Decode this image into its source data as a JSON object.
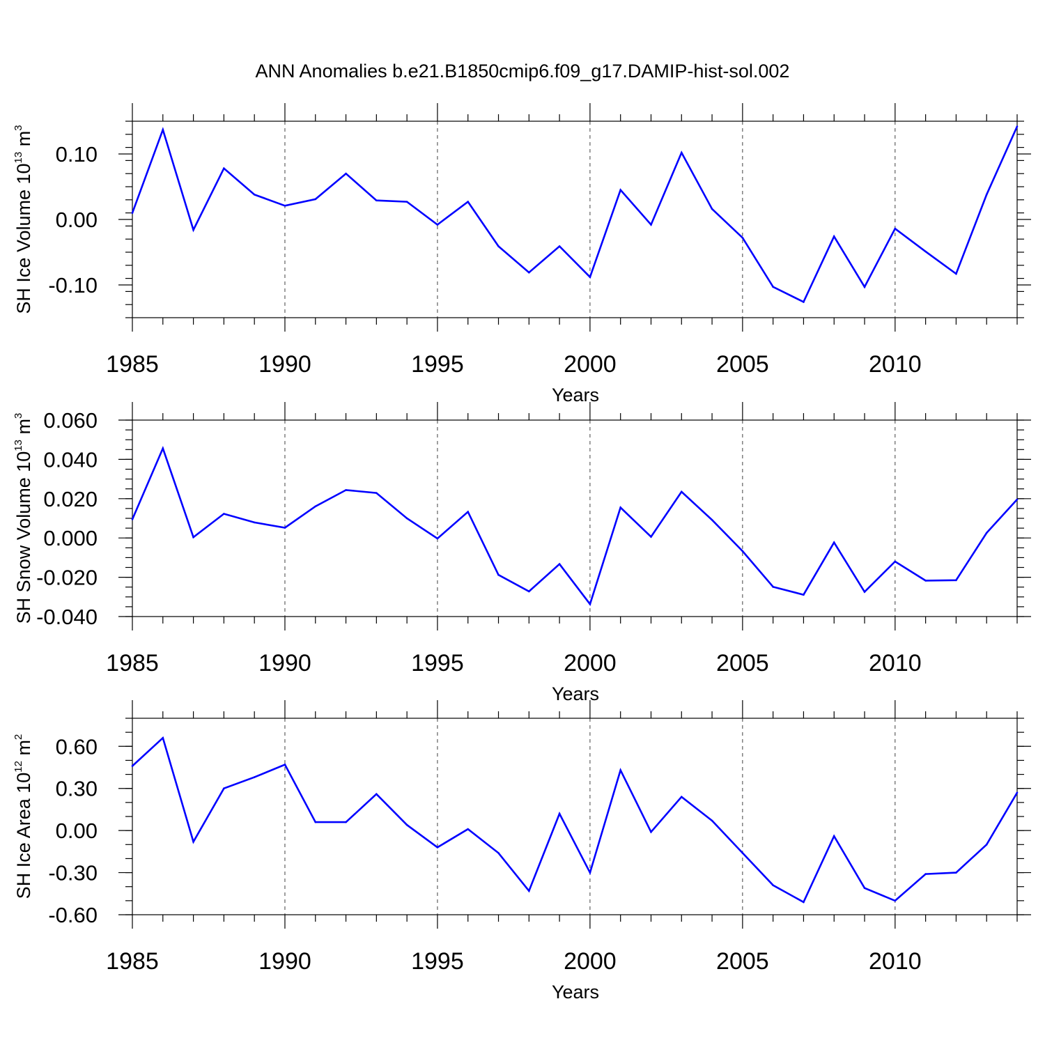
{
  "title": "ANN Anomalies b.e21.B1850cmip6.f09_g17.DAMIP-hist-sol.002",
  "colors": {
    "series": "#0000ff",
    "axis": "#000000",
    "background": "#ffffff"
  },
  "chart_data": [
    {
      "type": "line",
      "id": "ice-volume",
      "ylabel": {
        "prefix": "SH Ice Volume 10",
        "exp": "13",
        "unit": " m",
        "unit_exp": "3"
      },
      "xlabel": "Years",
      "xlim": [
        1985,
        2014
      ],
      "ylim": [
        -0.15,
        0.15
      ],
      "xticks": [
        1985,
        1990,
        1995,
        2000,
        2005,
        2010
      ],
      "xtick_labels": [
        "1985",
        "1990",
        "1995",
        "2000",
        "2005",
        "2010"
      ],
      "yticks": [
        -0.1,
        0.0,
        0.1
      ],
      "ytick_labels": [
        "-0.10",
        "0.00",
        "0.10"
      ],
      "yminor_step": 0.02,
      "grid": "vertical-dashed",
      "x": [
        1985,
        1986,
        1987,
        1988,
        1989,
        1990,
        1991,
        1992,
        1993,
        1994,
        1995,
        1996,
        1997,
        1998,
        1999,
        2000,
        2001,
        2002,
        2003,
        2004,
        2005,
        2006,
        2007,
        2008,
        2009,
        2010,
        2011,
        2012,
        2013,
        2014
      ],
      "values": [
        0.01,
        0.137,
        -0.016,
        0.078,
        0.038,
        0.021,
        0.031,
        0.07,
        0.029,
        0.027,
        -0.008,
        0.027,
        -0.041,
        -0.081,
        -0.041,
        -0.088,
        0.045,
        -0.008,
        0.102,
        0.016,
        -0.028,
        -0.103,
        -0.126,
        -0.026,
        -0.103,
        -0.014,
        -0.049,
        -0.083,
        0.038,
        0.142
      ]
    },
    {
      "type": "line",
      "id": "snow-volume",
      "ylabel": {
        "prefix": "SH Snow Volume 10",
        "exp": "13",
        "unit": " m",
        "unit_exp": "3"
      },
      "xlabel": "Years",
      "xlim": [
        1985,
        2014
      ],
      "ylim": [
        -0.04,
        0.06
      ],
      "xticks": [
        1985,
        1990,
        1995,
        2000,
        2005,
        2010
      ],
      "xtick_labels": [
        "1985",
        "1990",
        "1995",
        "2000",
        "2005",
        "2010"
      ],
      "yticks": [
        -0.04,
        -0.02,
        0.0,
        0.02,
        0.04,
        0.06
      ],
      "ytick_labels": [
        "-0.040",
        "-0.020",
        "0.000",
        "0.020",
        "0.040",
        "0.060"
      ],
      "yminor_step": 0.005,
      "grid": "vertical-dashed",
      "x": [
        1985,
        1986,
        1987,
        1988,
        1989,
        1990,
        1991,
        1992,
        1993,
        1994,
        1995,
        1996,
        1997,
        1998,
        1999,
        2000,
        2001,
        2002,
        2003,
        2004,
        2005,
        2006,
        2007,
        2008,
        2009,
        2010,
        2011,
        2012,
        2013,
        2014
      ],
      "values": [
        0.0095,
        0.0456,
        0.0004,
        0.0123,
        0.0079,
        0.0052,
        0.0161,
        0.0244,
        0.0229,
        0.01,
        -0.0003,
        0.0133,
        -0.0188,
        -0.0272,
        -0.0133,
        -0.0337,
        0.0155,
        0.0006,
        0.0235,
        0.0092,
        -0.0067,
        -0.0249,
        -0.0289,
        -0.0023,
        -0.0274,
        -0.012,
        -0.0217,
        -0.0215,
        0.0026,
        0.0196
      ]
    },
    {
      "type": "line",
      "id": "ice-area",
      "ylabel": {
        "prefix": "SH Ice Area 10",
        "exp": "12",
        "unit": " m",
        "unit_exp": "2"
      },
      "xlabel": "Years",
      "xlim": [
        1985,
        2014
      ],
      "ylim": [
        -0.6,
        0.8
      ],
      "xticks": [
        1985,
        1990,
        1995,
        2000,
        2005,
        2010
      ],
      "xtick_labels": [
        "1985",
        "1990",
        "1995",
        "2000",
        "2005",
        "2010"
      ],
      "yticks": [
        -0.6,
        -0.3,
        0.0,
        0.3,
        0.6
      ],
      "ytick_labels": [
        "-0.60",
        "-0.30",
        "0.00",
        "0.30",
        "0.60"
      ],
      "yminor_step": 0.1,
      "grid": "vertical-dashed",
      "x": [
        1985,
        1986,
        1987,
        1988,
        1989,
        1990,
        1991,
        1992,
        1993,
        1994,
        1995,
        1996,
        1997,
        1998,
        1999,
        2000,
        2001,
        2002,
        2003,
        2004,
        2005,
        2006,
        2007,
        2008,
        2009,
        2010,
        2011,
        2012,
        2013,
        2014
      ],
      "values": [
        0.46,
        0.66,
        -0.08,
        0.3,
        0.38,
        0.47,
        0.06,
        0.06,
        0.26,
        0.04,
        -0.12,
        0.01,
        -0.16,
        -0.43,
        0.12,
        -0.3,
        0.43,
        -0.01,
        0.24,
        0.07,
        -0.16,
        -0.39,
        -0.51,
        -0.04,
        -0.41,
        -0.5,
        -0.31,
        -0.3,
        -0.1,
        0.27
      ]
    }
  ]
}
